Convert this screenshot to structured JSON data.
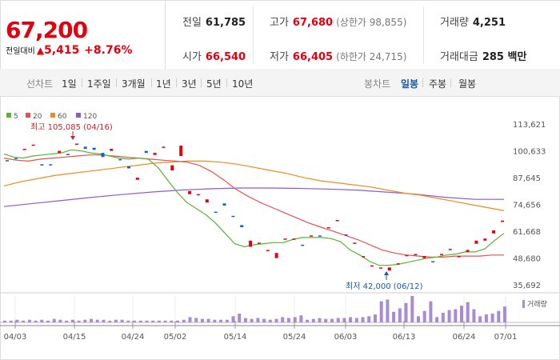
{
  "header": {
    "price": "67,200",
    "change_label": "전일대비",
    "change_arrow": "▲",
    "change_value": "5,415",
    "change_pct": "+8.76%",
    "prev_close_label": "전일",
    "prev_close": "61,785",
    "high_label": "고가",
    "high": "67,680",
    "upper_limit": "(상한가 98,855)",
    "volume_label": "거래량",
    "volume": "4,251",
    "open_label": "시가",
    "open": "66,540",
    "low_label": "저가",
    "low": "66,405",
    "lower_limit": "(하한가 24,715)",
    "value_label": "거래대금",
    "value": "285 백만"
  },
  "toolbar": {
    "line_label": "선차트",
    "periods": [
      "1일",
      "1주일",
      "3개월",
      "1년",
      "3년",
      "5년",
      "10년"
    ],
    "candle_label": "봉차트",
    "candles": [
      "일봉",
      "주봉",
      "월봉"
    ],
    "active_candle": "일봉"
  },
  "colors": {
    "up": "#e3000f",
    "down": "#0e62c8",
    "ma5": "#59b42f",
    "ma20": "#e8504f",
    "ma60": "#f28a1a",
    "ma120": "#8e5ad1",
    "volume": "#a88bd3"
  },
  "chart_data": [
    {
      "type": "candlestick",
      "legend": [
        "5",
        "20",
        "60",
        "120"
      ],
      "y_ticks": [
        "113,621",
        "100,633",
        "87,645",
        "74,656",
        "61,668",
        "48,680",
        "35,692"
      ],
      "ylim": [
        35692,
        113621
      ],
      "x_ticks": [
        "04/03",
        "04/15",
        "04/24",
        "05/02",
        "05/14",
        "05/24",
        "06/03",
        "06/13",
        "06/24",
        "07/01"
      ],
      "high_annotation": "최고 105,085 (04/16)",
      "low_annotation": "최저 42,000 (06/12)",
      "candles": [
        {
          "o": 96500,
          "c": 96000
        },
        {
          "o": 97500,
          "c": 97000
        },
        {
          "o": 101500,
          "c": 102000
        },
        {
          "o": 103500,
          "c": 104000
        },
        {
          "o": 94500,
          "c": 94000
        },
        {
          "o": 94500,
          "c": 94000
        },
        {
          "o": 100000,
          "c": 101000
        },
        {
          "o": 99500,
          "c": 99000
        },
        {
          "o": 104000,
          "c": 104500
        },
        {
          "o": 103000,
          "c": 102000
        },
        {
          "o": 102500,
          "c": 101500
        },
        {
          "o": 100000,
          "c": 98000
        },
        {
          "o": 101000,
          "c": 102000
        },
        {
          "o": 97000,
          "c": 96500
        },
        {
          "o": 93500,
          "c": 92500
        },
        {
          "o": 87000,
          "c": 88000
        },
        {
          "o": 101000,
          "c": 100000
        },
        {
          "o": 99000,
          "c": 100000
        },
        {
          "o": 103000,
          "c": 103000
        },
        {
          "o": 91500,
          "c": 94000
        },
        {
          "o": 98500,
          "c": 103500
        },
        {
          "o": 80000,
          "c": 81500
        },
        {
          "o": 80000,
          "c": 80000
        },
        {
          "o": 76000,
          "c": 77500
        },
        {
          "o": 71500,
          "c": 71000
        },
        {
          "o": 75500,
          "c": 74500
        },
        {
          "o": 69500,
          "c": 69000
        },
        {
          "o": 65000,
          "c": 64000
        },
        {
          "o": 54500,
          "c": 57500
        },
        {
          "o": 56000,
          "c": 56500
        },
        {
          "o": 53000,
          "c": 53000
        },
        {
          "o": 49000,
          "c": 51500
        },
        {
          "o": 58000,
          "c": 58500
        },
        {
          "o": 58000,
          "c": 58500
        },
        {
          "o": 55500,
          "c": 55000
        },
        {
          "o": 60000,
          "c": 60000
        },
        {
          "o": 60000,
          "c": 59500
        },
        {
          "o": 64000,
          "c": 64000
        },
        {
          "o": 67000,
          "c": 67500
        },
        {
          "o": 60500,
          "c": 60000
        },
        {
          "o": 56000,
          "c": 56500
        },
        {
          "o": 49500,
          "c": 50000
        },
        {
          "o": 45500,
          "c": 45500
        },
        {
          "o": 44500,
          "c": 44500
        },
        {
          "o": 43000,
          "c": 44500
        },
        {
          "o": 46000,
          "c": 46500
        },
        {
          "o": 50000,
          "c": 50500
        },
        {
          "o": 51000,
          "c": 51000
        },
        {
          "o": 49000,
          "c": 50000
        },
        {
          "o": 47500,
          "c": 47000
        },
        {
          "o": 50500,
          "c": 51000
        },
        {
          "o": 53000,
          "c": 53500
        },
        {
          "o": 49500,
          "c": 50000
        },
        {
          "o": 52000,
          "c": 53000
        },
        {
          "o": 56000,
          "c": 57500
        },
        {
          "o": 57500,
          "c": 58500
        },
        {
          "o": 61000,
          "c": 62500
        },
        {
          "o": 66540,
          "c": 67200
        }
      ],
      "ma5": [
        99500,
        98000,
        97500,
        98500,
        99000,
        99500,
        100000,
        101500,
        101000,
        100000,
        99500,
        98500,
        97500,
        97000,
        97500,
        97000,
        93000,
        87000,
        81000,
        76000,
        73000,
        70000,
        66000,
        61000,
        56000,
        54500,
        55500,
        56000,
        56500,
        56500,
        58000,
        59000,
        59000,
        59000,
        58500,
        57000,
        53000,
        50500,
        47500,
        45500,
        45500,
        46000,
        47000,
        48000,
        49000,
        49500,
        50500,
        51000,
        52000,
        52000,
        53500,
        57500,
        61000
      ],
      "ma20": [
        97500,
        96500,
        96000,
        97000,
        97500,
        98000,
        98500,
        99000,
        99000,
        98500,
        98000,
        97500,
        97000,
        96500,
        96000,
        95500,
        94000,
        91000,
        87000,
        82500,
        79000,
        76000,
        73500,
        71000,
        68500,
        66000,
        64000,
        62000,
        60000,
        58000,
        55500,
        53000,
        51500,
        50500,
        50000,
        49500,
        49500,
        50000,
        50000,
        50000,
        50500,
        50500
      ],
      "ma60": [
        84000,
        86000,
        87500,
        89000,
        90000,
        91000,
        92000,
        93000,
        94000,
        95000,
        95500,
        96000,
        96000,
        95500,
        94500,
        93000,
        91500,
        90000,
        88000,
        86500,
        85500,
        84500,
        83500,
        82000,
        80500,
        79500,
        78000,
        76500,
        75000,
        73500,
        72000
      ],
      "ma120": [
        74000,
        75500,
        77000,
        78500,
        79800,
        81000,
        82000,
        82600,
        83000,
        83000,
        82800,
        82500,
        82000,
        81000,
        80000,
        78500,
        77500,
        77500
      ],
      "volume": [
        2,
        2,
        3,
        2,
        3,
        2,
        3,
        2,
        4,
        3,
        2,
        3,
        2,
        3,
        4,
        3,
        3,
        2,
        3,
        3,
        2,
        2,
        2,
        2,
        2,
        2,
        2,
        2,
        2,
        3,
        6,
        5,
        4,
        4,
        3,
        3,
        3,
        7,
        10,
        5,
        4,
        5,
        4,
        3,
        4,
        6,
        5,
        6,
        8,
        3,
        4,
        5,
        4,
        4,
        5,
        5,
        6,
        5,
        6,
        7,
        9,
        24,
        26,
        12,
        16,
        22,
        30,
        7,
        13,
        24,
        6,
        11,
        14,
        15,
        19,
        23,
        15,
        7,
        9,
        10,
        13,
        18
      ]
    }
  ]
}
